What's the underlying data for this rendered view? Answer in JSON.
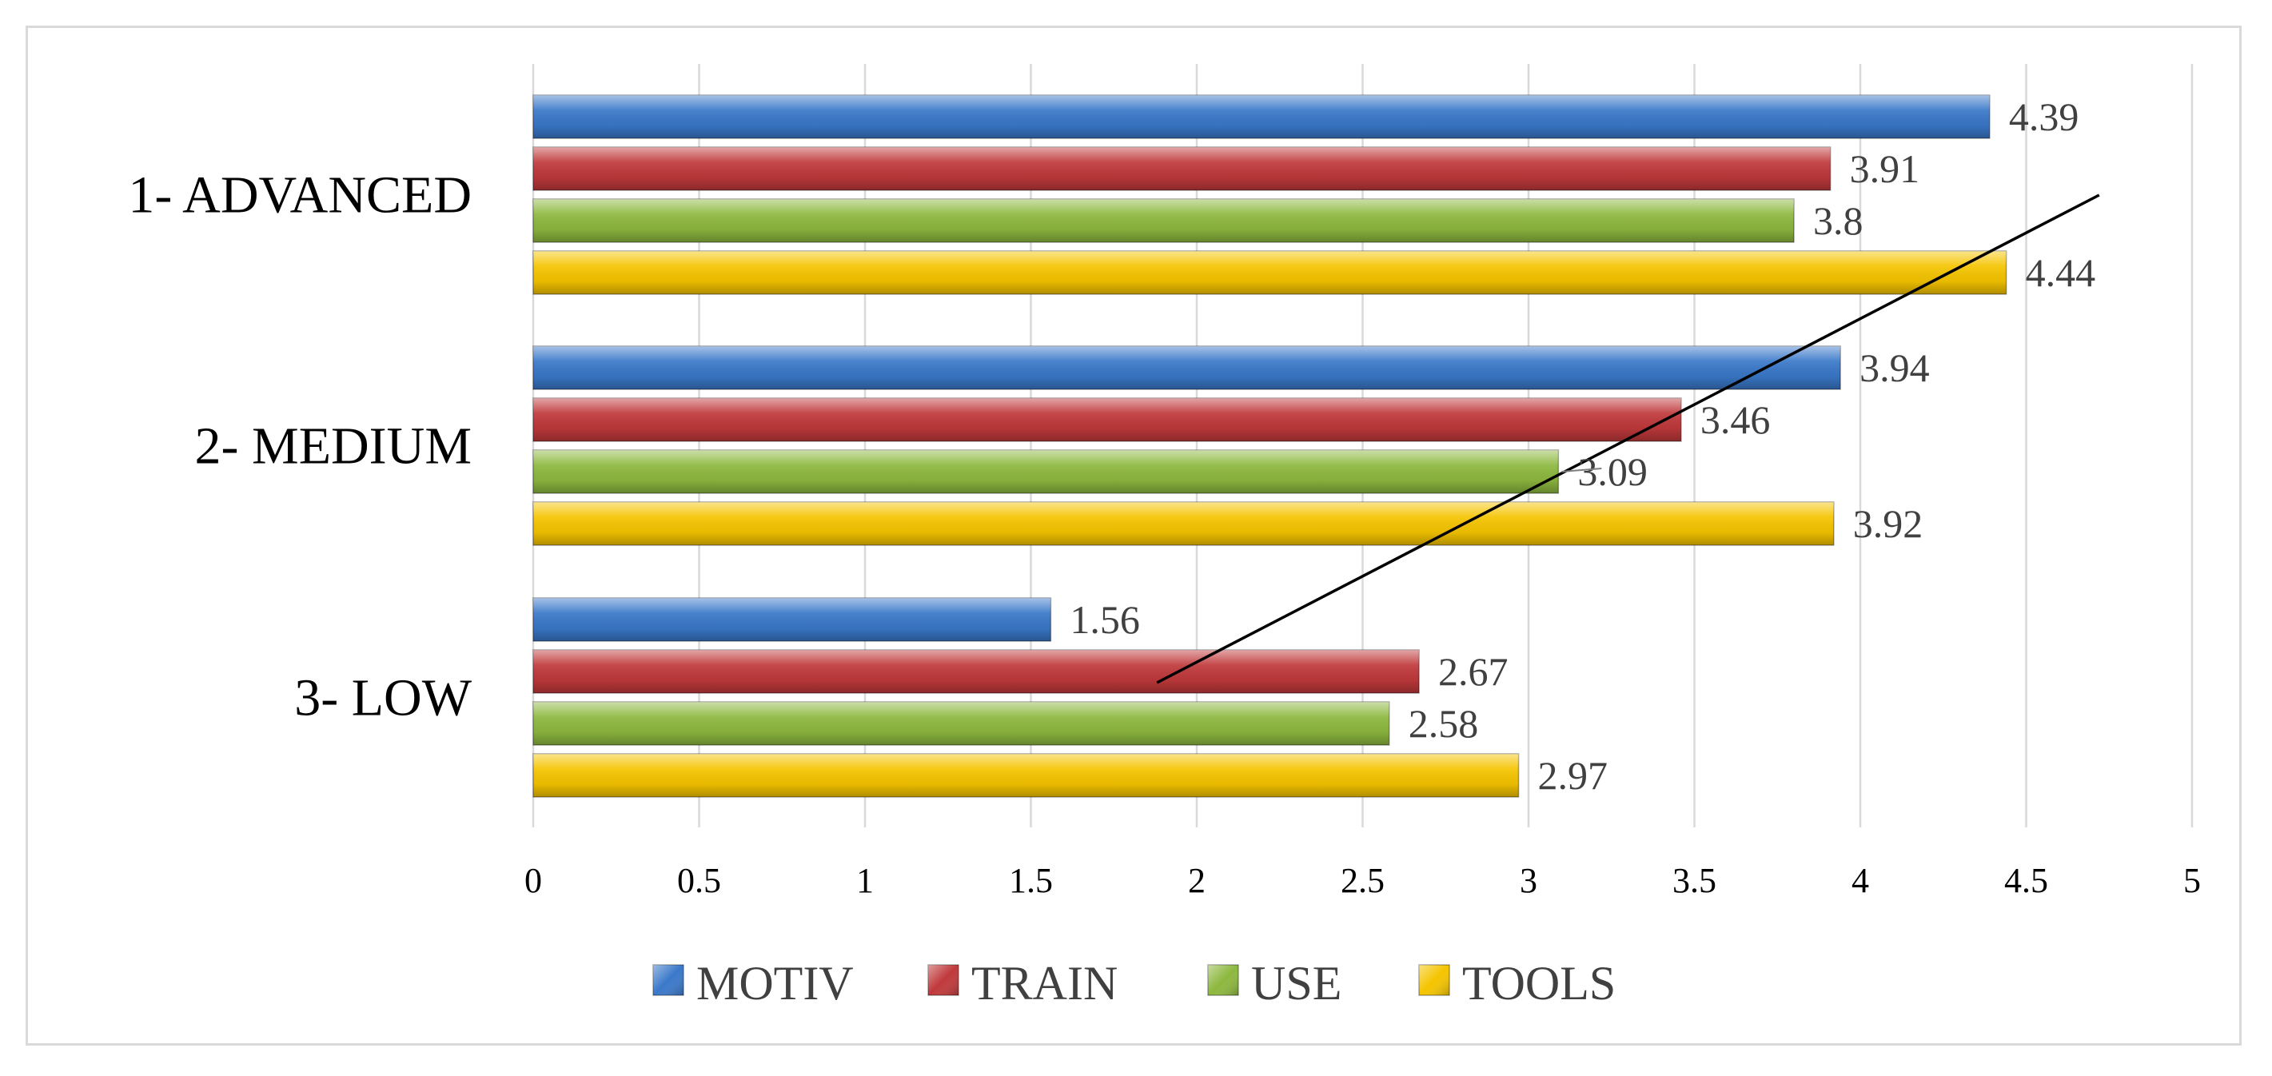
{
  "chart_data": {
    "type": "bar",
    "orientation": "horizontal",
    "categories": [
      "1- ADVANCED",
      "2- MEDIUM",
      "3- LOW"
    ],
    "series": [
      {
        "name": "MOTIV",
        "values": [
          4.39,
          3.94,
          1.56
        ],
        "color": "#3A78C9"
      },
      {
        "name": "TRAIN",
        "values": [
          3.91,
          3.46,
          2.67
        ],
        "color": "#C0393B"
      },
      {
        "name": "USE",
        "values": [
          3.8,
          3.09,
          2.58
        ],
        "color": "#8DB83F"
      },
      {
        "name": "TOOLS",
        "values": [
          4.44,
          3.92,
          2.97
        ],
        "color": "#F5C400"
      }
    ],
    "x_ticks": [
      "0",
      "0.5",
      "1",
      "1.5",
      "2",
      "2.5",
      "3",
      "3.5",
      "4",
      "4.5",
      "5"
    ],
    "xlim": [
      0,
      5
    ],
    "grid": "vertical",
    "legend": "bottom",
    "trendline": {
      "from": [
        1.88,
        "3- LOW"
      ],
      "to": [
        4.72,
        "1- ADVANCED"
      ]
    }
  }
}
